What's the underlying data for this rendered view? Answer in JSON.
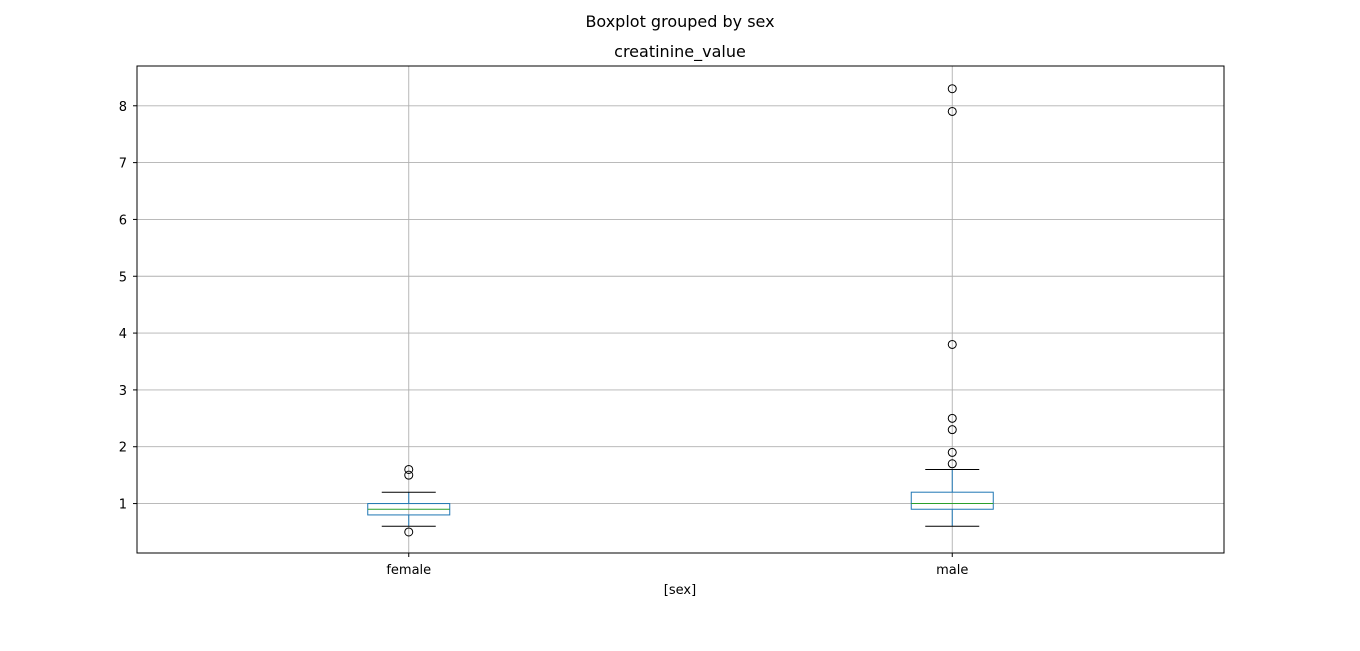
{
  "chart_data": {
    "type": "boxplot",
    "suptitle": "Boxplot grouped by sex",
    "title": "creatinine_value",
    "xlabel": "[sex]",
    "ylabel": "",
    "categories": [
      "female",
      "male"
    ],
    "yticks": [
      1,
      2,
      3,
      4,
      5,
      6,
      7,
      8
    ],
    "ylim": [
      0.13,
      8.7
    ],
    "grid": true,
    "colors": {
      "box": "#1f77b4",
      "median": "#2ca02c",
      "whisker": "#1f77b4",
      "cap": "#000000",
      "flier": "#000000",
      "grid": "#b0b0b0"
    },
    "boxes": [
      {
        "category": "female",
        "whislo": 0.6,
        "q1": 0.8,
        "med": 0.9,
        "q3": 1.0,
        "whishi": 1.2,
        "fliers": [
          0.5,
          1.5,
          1.6
        ]
      },
      {
        "category": "male",
        "whislo": 0.6,
        "q1": 0.9,
        "med": 1.0,
        "q3": 1.2,
        "whishi": 1.6,
        "fliers": [
          1.7,
          1.9,
          2.3,
          2.5,
          3.8,
          7.9,
          8.3
        ]
      }
    ]
  }
}
